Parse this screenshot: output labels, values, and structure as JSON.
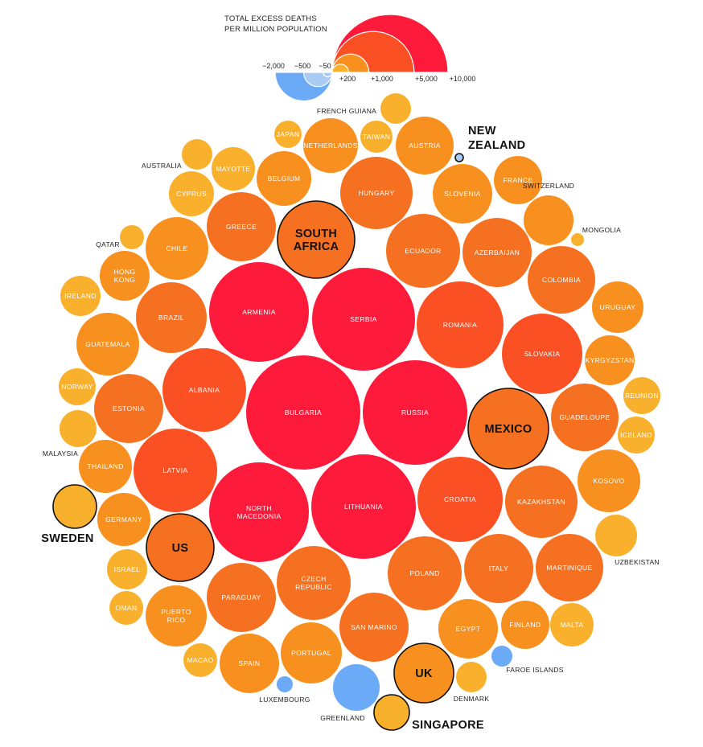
{
  "chart_data": {
    "type": "packed-bubble",
    "title": "TOTAL EXCESS DEATHS\nPER MILLION POPULATION",
    "size_encoding": "excess deaths per million population",
    "legend": {
      "negative_ticks": [
        {
          "label": "−2,000",
          "value": -2000
        },
        {
          "label": "−500",
          "value": -500
        },
        {
          "label": "−50",
          "value": -50
        }
      ],
      "positive_ticks": [
        {
          "label": "+200",
          "value": 200
        },
        {
          "label": "+1,000",
          "value": 1000
        },
        {
          "label": "+5,000",
          "value": 5000
        },
        {
          "label": "+10,000",
          "value": 10000
        }
      ]
    },
    "colors": {
      "negative": "#6aaaf6",
      "negative_light": "#a9ccf5",
      "low": "#f9b12d",
      "mid": "#f8901f",
      "high": "#f57020",
      "higher": "#fb5024",
      "highest": "#fe1a3b"
    },
    "countries": [
      {
        "name": "BULGARIA",
        "value": 7500
      },
      {
        "name": "RUSSIA",
        "value": 6100
      },
      {
        "name": "LITHUANIA",
        "value": 5600
      },
      {
        "name": "SERBIA",
        "value": 5500
      },
      {
        "name": "NORTH\nMACEDONIA",
        "value": 5100
      },
      {
        "name": "ARMENIA",
        "value": 5100
      },
      {
        "name": "ROMANIA",
        "value": 3900
      },
      {
        "name": "CROATIA",
        "value": 3650
      },
      {
        "name": "ALBANIA",
        "value": 3550
      },
      {
        "name": "LATVIA",
        "value": 3500
      },
      {
        "name": "SLOVAKIA",
        "value": 3250
      },
      {
        "name": "MEXICO",
        "value": 2700
      },
      {
        "name": "SOUTH\nAFRICA",
        "value": 2500
      },
      {
        "name": "CZECH\nREPUBLIC",
        "value": 2700
      },
      {
        "name": "POLAND",
        "value": 2650
      },
      {
        "name": "SAN MARINO",
        "value": 2550
      },
      {
        "name": "HUNGARY",
        "value": 2600
      },
      {
        "name": "ECUADOR",
        "value": 2620
      },
      {
        "name": "COLOMBIA",
        "value": 2300
      },
      {
        "name": "ITALY",
        "value": 2350
      },
      {
        "name": "MARTINIQUE",
        "value": 2250
      },
      {
        "name": "ESTONIA",
        "value": 2300
      },
      {
        "name": "PARAGUAY",
        "value": 2250
      },
      {
        "name": "BRAZIL",
        "value": 2350
      },
      {
        "name": "GREECE",
        "value": 2350
      },
      {
        "name": "AZERBAIJAN",
        "value": 2250
      },
      {
        "name": "KAZAKHSTAN",
        "value": 2200
      },
      {
        "name": "CHILE",
        "value": 1950
      },
      {
        "name": "US",
        "value": 2100
      },
      {
        "name": "GUADELOUPE",
        "value": 2100
      },
      {
        "name": "SPAIN",
        "value": 1750
      },
      {
        "name": "PORTUGAL",
        "value": 1800
      },
      {
        "name": "KOSOVO",
        "value": 1900
      },
      {
        "name": "EGYPT",
        "value": 1750
      },
      {
        "name": "PUERTO\nRICO",
        "value": 1860
      },
      {
        "name": "GUATEMALA",
        "value": 1900
      },
      {
        "name": "SLOVENIA",
        "value": 1770
      },
      {
        "name": "AUSTRIA",
        "value": 1610
      },
      {
        "name": "BELGIUM",
        "value": 1450
      },
      {
        "name": "NETHERLANDS",
        "value": 1430
      },
      {
        "name": "GERMANY",
        "value": 1350
      },
      {
        "name": "THAILAND",
        "value": 1310
      },
      {
        "name": "UK",
        "value": 1340
      },
      {
        "name": "FINLAND",
        "value": 1150
      },
      {
        "name": "HONG\nKONG",
        "value": 1220
      },
      {
        "name": "FRANCE",
        "value": 1140
      },
      {
        "name": "URUGUAY",
        "value": 1310
      },
      {
        "name": "KYRGYZSTAN",
        "value": 1190
      },
      {
        "name": "MAYOTTE",
        "value": 890
      },
      {
        "name": "CYPRUS",
        "value": 860
      },
      {
        "name": "SWITZERLAND",
        "value": 1200
      },
      {
        "name": "MALTA",
        "value": 920
      },
      {
        "name": "UZBEKISTAN",
        "value": 880
      },
      {
        "name": "SWEDEN",
        "value": 880
      },
      {
        "name": "REUNION",
        "value": 720
      },
      {
        "name": "ICELAND",
        "value": 680
      },
      {
        "name": "IRELAND",
        "value": 660
      },
      {
        "name": "ISRAEL",
        "value": 720
      },
      {
        "name": "NORWAY",
        "value": 630
      },
      {
        "name": "MALAYSIA",
        "value": 660
      },
      {
        "name": "OMAN",
        "value": 560
      },
      {
        "name": "TAIWAN",
        "value": 500
      },
      {
        "name": "MACAO",
        "value": 590
      },
      {
        "name": "DENMARK",
        "value": 470
      },
      {
        "name": "SINGAPORE",
        "value": 610
      },
      {
        "name": "AUSTRALIA",
        "value": 470
      },
      {
        "name": "FRENCH GUIANA",
        "value": 460
      },
      {
        "name": "JAPAN",
        "value": 370
      },
      {
        "name": "QATAR",
        "value": 310
      },
      {
        "name": "MONGOLIA",
        "value": 100
      },
      {
        "name": "NEW\nZEALAND",
        "value": -80
      },
      {
        "name": "FAROE ISLANDS",
        "value": -400
      },
      {
        "name": "LUXEMBOURG",
        "value": -240
      },
      {
        "name": "GREENLAND",
        "value": -1800
      }
    ]
  }
}
